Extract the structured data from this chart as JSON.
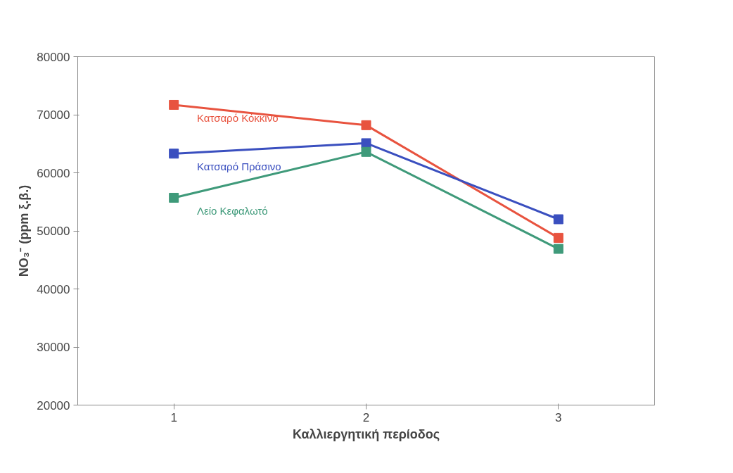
{
  "chart_data": {
    "type": "line",
    "xlabel": "Καλλιεργητική περίοδος",
    "ylabel": "NO₃⁻ (ppm ξ.β.)",
    "categories": [
      "1",
      "2",
      "3"
    ],
    "series": [
      {
        "name": "Κατσαρό Κόκκινο",
        "color": "#e8533f",
        "values": [
          71700,
          68200,
          48800
        ]
      },
      {
        "name": "Κατσαρό Πράσινο",
        "color": "#3a4fbf",
        "values": [
          63300,
          65100,
          52000
        ]
      },
      {
        "name": "Λείο Κεφαλωτό",
        "color": "#3f9a7a",
        "values": [
          55700,
          63600,
          46900
        ]
      }
    ],
    "ylim": [
      20000,
      80000
    ],
    "yticks": [
      20000,
      30000,
      40000,
      50000,
      60000,
      70000,
      80000
    ],
    "grid": false,
    "marker": "square",
    "line_style": "solid"
  }
}
